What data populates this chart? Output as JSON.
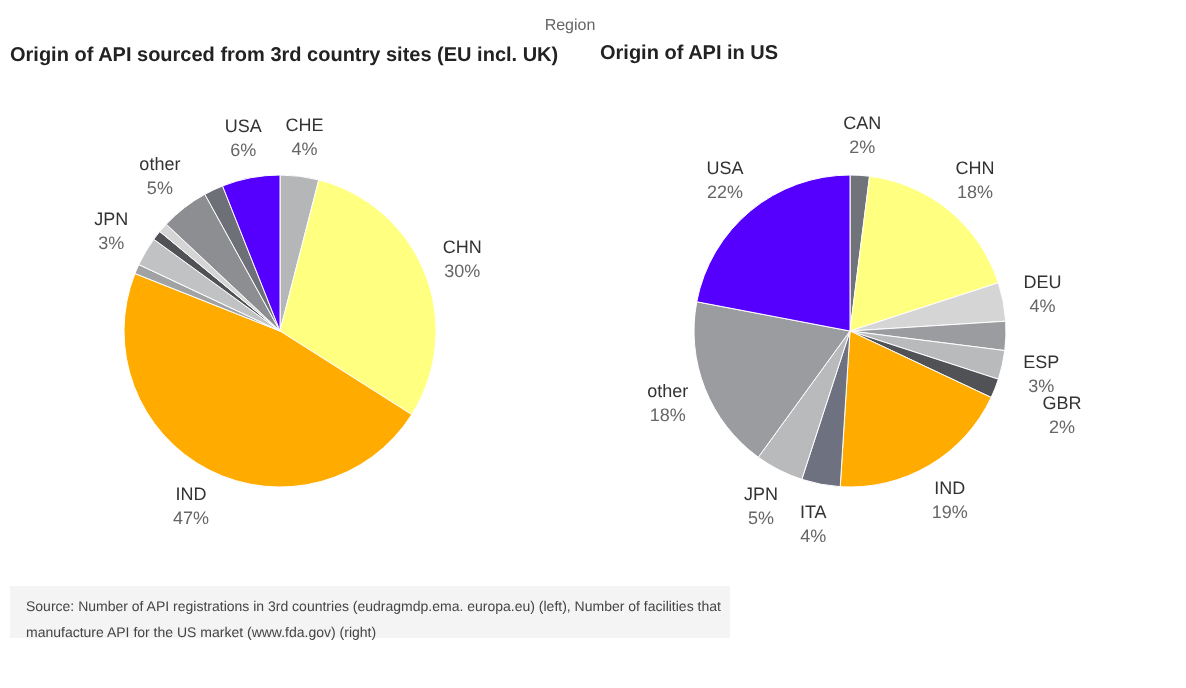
{
  "chart_data": [
    {
      "type": "pie",
      "title": "Origin of API sourced from 3rd country sites (EU incl. UK)",
      "categories": [
        "CHE",
        "CHN",
        "IND",
        null,
        "JPN",
        null,
        null,
        "other",
        null,
        "USA"
      ],
      "values": [
        4,
        30,
        47,
        1,
        3,
        1,
        1,
        5,
        2,
        6
      ],
      "value_labels": [
        "4%",
        "30%",
        "47%",
        null,
        "3%",
        null,
        null,
        "5%",
        null,
        "6%"
      ],
      "colors": [
        "#b4b6b8",
        "#ffff80",
        "#ffab00",
        "#a0a2a4",
        "#c0c2c4",
        "#505256",
        "#d5d5d5",
        "#8c8e92",
        "#6e7078",
        "#5500ff"
      ],
      "annotations": [
        "Region",
        "Source: Number of API registrations in 3rd countries (eudragmdp.ema. europa.eu) (left), Number of facilities that manufacture API for the US market (www.fda.gov) (right)"
      ]
    },
    {
      "type": "pie",
      "title": "Origin of API in US",
      "categories": [
        "CAN",
        "CHN",
        "DEU",
        null,
        "ESP",
        "GBR",
        "IND",
        "ITA",
        "JPN",
        "other",
        "USA"
      ],
      "values": [
        2,
        18,
        4,
        3,
        3,
        2,
        19,
        4,
        5,
        18,
        22
      ],
      "value_labels": [
        "2%",
        "18%",
        "4%",
        null,
        "3%",
        "2%",
        "19%",
        "4%",
        "5%",
        "18%",
        "22%"
      ],
      "colors": [
        "#70737a",
        "#ffff80",
        "#d5d5d5",
        "#9a9ca0",
        "#b8babc",
        "#505256",
        "#ffab00",
        "#6e7280",
        "#b8babc",
        "#9a9ca0",
        "#5500ff"
      ]
    }
  ]
}
